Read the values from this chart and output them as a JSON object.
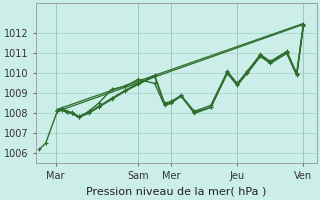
{
  "xlabel": "Pression niveau de la mer( hPa )",
  "bg_color": "#cceee8",
  "grid_color": "#aad4ce",
  "line_color": "#2d6e2d",
  "ylim": [
    1005.5,
    1013.5
  ],
  "yticks": [
    1006,
    1007,
    1008,
    1009,
    1010,
    1011,
    1012
  ],
  "xlim": [
    -0.1,
    8.4
  ],
  "xtick_labels": [
    "Mar",
    "Sam",
    "Mer",
    "Jeu",
    "Ven"
  ],
  "xtick_positions": [
    0.5,
    3.0,
    4.0,
    6.0,
    8.0
  ],
  "vlines": [
    0.5,
    3.0,
    4.0,
    6.0,
    8.0
  ],
  "series": [
    {
      "x": [
        0.0,
        0.2,
        0.55,
        0.7,
        0.85,
        1.0,
        1.2,
        1.5,
        1.8,
        2.2,
        2.6,
        3.0,
        3.5,
        3.8,
        4.0,
        4.3,
        4.7,
        5.2,
        5.7,
        6.0,
        6.3,
        6.7,
        7.0,
        7.5,
        7.8,
        8.0
      ],
      "y": [
        1006.2,
        1006.5,
        1008.1,
        1008.2,
        1008.05,
        1008.0,
        1007.8,
        1008.0,
        1008.3,
        1008.7,
        1009.1,
        1009.45,
        1009.85,
        1008.45,
        1008.55,
        1008.85,
        1008.05,
        1008.3,
        1010.05,
        1009.45,
        1010.05,
        1010.9,
        1010.55,
        1011.05,
        1009.95,
        1012.4
      ],
      "marker": "+",
      "lw": 1.0
    },
    {
      "x": [
        0.55,
        0.7,
        0.85,
        1.0,
        1.2,
        1.5,
        1.8,
        2.2,
        2.6,
        3.0,
        3.5,
        3.8,
        4.0,
        4.3,
        4.7,
        5.2,
        5.7,
        6.0,
        6.3,
        6.7,
        7.0,
        7.5,
        7.8,
        8.0
      ],
      "y": [
        1008.15,
        1008.25,
        1008.1,
        1008.05,
        1007.85,
        1008.05,
        1008.35,
        1008.75,
        1009.15,
        1009.5,
        1009.9,
        1008.5,
        1008.6,
        1008.9,
        1008.1,
        1008.4,
        1010.1,
        1009.5,
        1010.1,
        1010.95,
        1010.6,
        1011.1,
        1010.0,
        1012.45
      ],
      "marker": "+",
      "lw": 1.0
    },
    {
      "x": [
        0.55,
        8.0
      ],
      "y": [
        1008.1,
        1012.45
      ],
      "marker": null,
      "lw": 0.9
    },
    {
      "x": [
        0.55,
        8.0
      ],
      "y": [
        1008.2,
        1012.5
      ],
      "marker": null,
      "lw": 0.9
    },
    {
      "x": [
        0.55,
        0.7,
        0.85,
        1.0,
        1.2,
        1.5,
        1.8,
        2.2,
        2.6,
        3.0,
        3.5,
        3.8,
        4.0,
        4.3,
        4.7,
        5.2,
        5.7,
        6.0,
        6.3,
        6.7,
        7.0,
        7.5,
        7.8,
        8.0
      ],
      "y": [
        1008.1,
        1008.15,
        1008.05,
        1008.0,
        1007.8,
        1008.1,
        1008.5,
        1009.2,
        1009.35,
        1009.7,
        1009.5,
        1008.4,
        1008.5,
        1008.9,
        1008.0,
        1008.3,
        1010.0,
        1009.4,
        1010.0,
        1010.85,
        1010.5,
        1011.0,
        1009.9,
        1012.35
      ],
      "marker": "+",
      "lw": 1.0
    }
  ],
  "xlabel_fontsize": 8,
  "tick_fontsize": 7
}
